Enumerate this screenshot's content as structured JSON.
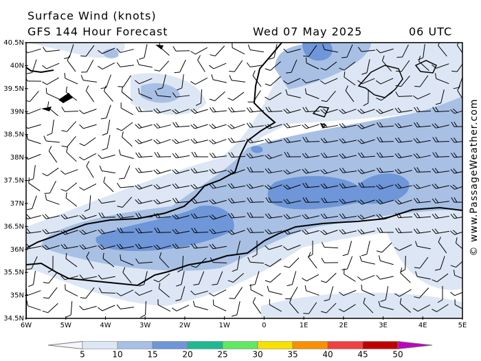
{
  "header": {
    "title": "Surface Wind (knots)",
    "subtitle": "GFS 144 Hour Forecast",
    "date": "Wed 07 May 2025",
    "time": "06 UTC"
  },
  "map": {
    "lat_labels": [
      "40.5N",
      "40N",
      "39.5N",
      "39N",
      "38.5N",
      "38N",
      "37.5N",
      "37N",
      "36.5N",
      "36N",
      "35.5N",
      "35N",
      "34.5N"
    ],
    "lon_labels": [
      "6W",
      "5W",
      "4W",
      "3W",
      "2W",
      "1W",
      "0",
      "1E",
      "2E",
      "3E",
      "4E",
      "5E"
    ]
  },
  "colorbar": {
    "labels": [
      "5",
      "10",
      "15",
      "20",
      "25",
      "30",
      "35",
      "40",
      "45",
      "50"
    ],
    "colors": [
      "#f4f6fb",
      "#dde6f4",
      "#a8c0e4",
      "#6e96d8",
      "#20b890",
      "#60e860",
      "#f8e000",
      "#f89000",
      "#f04040",
      "#c00000",
      "#c000c0"
    ]
  },
  "credit": "© www.PassageWeather.com"
}
